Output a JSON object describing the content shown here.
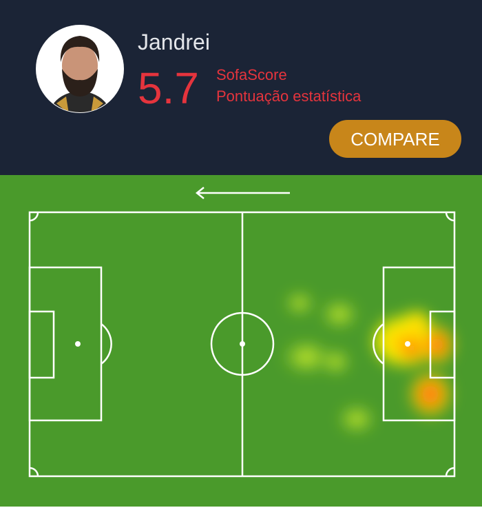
{
  "player": {
    "name": "Jandrei",
    "rating": 5.7,
    "rating_source": "SofaScore",
    "rating_label": "Pontuação estatística"
  },
  "button": {
    "label": "COMPARE"
  }
}
